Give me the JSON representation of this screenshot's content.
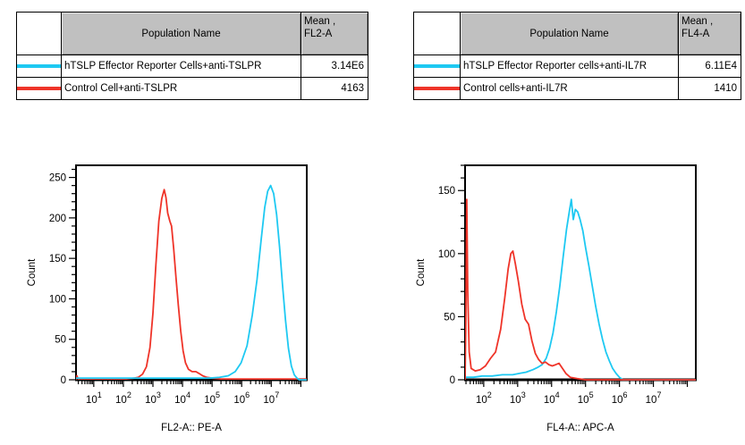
{
  "colors": {
    "cyan": "#1ec9f2",
    "red": "#ef3429",
    "table_header_bg": "#c0c0c0",
    "axis": "#000000"
  },
  "tables": [
    {
      "population_header": "Population Name",
      "mean_header_line1": "Mean ,",
      "mean_header_line2": "FL2-A",
      "rows": [
        {
          "name": "hTSLP Effector Reporter Cells+anti-TSLPR",
          "mean": "3.14E6",
          "color": "#1ec9f2"
        },
        {
          "name": "Control Cell+anti-TSLPR",
          "mean": "4163",
          "color": "#ef3429"
        }
      ]
    },
    {
      "population_header": "Population Name",
      "mean_header_line1": "Mean ,",
      "mean_header_line2": "FL4-A",
      "rows": [
        {
          "name": "hTSLP Effector Reporter cells+anti-IL7R",
          "mean": "6.11E4",
          "color": "#1ec9f2"
        },
        {
          "name": "Control cells+anti-IL7R",
          "mean": "1410",
          "color": "#ef3429"
        }
      ]
    }
  ],
  "chart_data": [
    {
      "type": "line",
      "title": "",
      "xlabel": "FL2-A:: PE-A",
      "ylabel": "Count",
      "x_scale": "log",
      "x_log_range": [
        0.4,
        8.2
      ],
      "x_labeled_decades": [
        1,
        2,
        3,
        4,
        5,
        6,
        7
      ],
      "ylim": [
        0,
        265
      ],
      "y_major_step": 50,
      "y_minor_step": 10,
      "grid": false,
      "legend_position": "none",
      "series": [
        {
          "name": "Control Cell+anti-TSLPR",
          "color": "#ef3429",
          "mean": "4163",
          "points": [
            [
              0.4,
              0
            ],
            [
              0.43,
              5
            ],
            [
              0.47,
              1
            ],
            [
              1.0,
              1
            ],
            [
              1.6,
              1
            ],
            [
              2.1,
              1
            ],
            [
              2.35,
              2
            ],
            [
              2.5,
              3
            ],
            [
              2.65,
              7
            ],
            [
              2.78,
              16
            ],
            [
              2.9,
              40
            ],
            [
              3.0,
              82
            ],
            [
              3.1,
              142
            ],
            [
              3.2,
              196
            ],
            [
              3.3,
              224
            ],
            [
              3.38,
              235
            ],
            [
              3.44,
              225
            ],
            [
              3.5,
              206
            ],
            [
              3.57,
              196
            ],
            [
              3.63,
              190
            ],
            [
              3.7,
              162
            ],
            [
              3.78,
              126
            ],
            [
              3.86,
              92
            ],
            [
              3.94,
              60
            ],
            [
              4.02,
              36
            ],
            [
              4.1,
              21
            ],
            [
              4.2,
              13
            ],
            [
              4.32,
              10
            ],
            [
              4.45,
              10
            ],
            [
              4.55,
              8
            ],
            [
              4.68,
              5
            ],
            [
              4.82,
              3
            ],
            [
              5.0,
              2
            ],
            [
              5.3,
              1
            ],
            [
              6.0,
              1
            ],
            [
              6.8,
              1
            ],
            [
              7.6,
              1
            ],
            [
              8.2,
              1
            ]
          ]
        },
        {
          "name": "hTSLP Effector Reporter Cells+anti-TSLPR",
          "color": "#1ec9f2",
          "mean": "3.14E6",
          "points": [
            [
              0.4,
              2
            ],
            [
              1.2,
              2
            ],
            [
              2.2,
              2
            ],
            [
              3.2,
              2
            ],
            [
              4.2,
              2
            ],
            [
              4.9,
              2
            ],
            [
              5.25,
              3
            ],
            [
              5.55,
              5
            ],
            [
              5.78,
              10
            ],
            [
              5.98,
              21
            ],
            [
              6.18,
              42
            ],
            [
              6.36,
              80
            ],
            [
              6.52,
              124
            ],
            [
              6.66,
              174
            ],
            [
              6.78,
              213
            ],
            [
              6.88,
              233
            ],
            [
              6.98,
              240
            ],
            [
              7.08,
              230
            ],
            [
              7.18,
              204
            ],
            [
              7.28,
              164
            ],
            [
              7.38,
              117
            ],
            [
              7.48,
              74
            ],
            [
              7.58,
              39
            ],
            [
              7.68,
              17
            ],
            [
              7.78,
              6
            ],
            [
              7.87,
              2
            ],
            [
              7.95,
              0
            ],
            [
              8.2,
              0
            ]
          ]
        }
      ]
    },
    {
      "type": "line",
      "title": "",
      "xlabel": "FL4-A:: APC-A",
      "ylabel": "Count",
      "x_scale": "log",
      "x_log_range": [
        1.45,
        8.25
      ],
      "x_labeled_decades": [
        2,
        3,
        4,
        5,
        6,
        7
      ],
      "ylim": [
        0,
        170
      ],
      "y_major_step": 50,
      "y_minor_step": 10,
      "grid": false,
      "legend_position": "none",
      "series": [
        {
          "name": "hTSLP Effector Reporter cells+anti-IL7R",
          "color": "#1ec9f2",
          "mean": "6.11E4",
          "points": [
            [
              1.45,
              2
            ],
            [
              1.7,
              2
            ],
            [
              1.95,
              3
            ],
            [
              2.25,
              3
            ],
            [
              2.55,
              4
            ],
            [
              2.85,
              4
            ],
            [
              3.05,
              5
            ],
            [
              3.25,
              6
            ],
            [
              3.45,
              8
            ],
            [
              3.6,
              10
            ],
            [
              3.72,
              12
            ],
            [
              3.84,
              17
            ],
            [
              3.94,
              25
            ],
            [
              4.04,
              37
            ],
            [
              4.14,
              54
            ],
            [
              4.24,
              74
            ],
            [
              4.34,
              97
            ],
            [
              4.44,
              119
            ],
            [
              4.52,
              133
            ],
            [
              4.58,
              143
            ],
            [
              4.64,
              127
            ],
            [
              4.7,
              135
            ],
            [
              4.77,
              133
            ],
            [
              4.84,
              127
            ],
            [
              4.92,
              118
            ],
            [
              5.0,
              105
            ],
            [
              5.1,
              90
            ],
            [
              5.2,
              74
            ],
            [
              5.3,
              58
            ],
            [
              5.4,
              44
            ],
            [
              5.5,
              32
            ],
            [
              5.6,
              22
            ],
            [
              5.7,
              15
            ],
            [
              5.8,
              9
            ],
            [
              5.9,
              5
            ],
            [
              6.0,
              2
            ],
            [
              6.1,
              0
            ],
            [
              6.6,
              0
            ],
            [
              8.25,
              0
            ]
          ]
        },
        {
          "name": "Control cells+anti-IL7R",
          "color": "#ef3429",
          "mean": "1410",
          "points": [
            [
              1.45,
              0
            ],
            [
              1.47,
              40
            ],
            [
              1.5,
              143
            ],
            [
              1.53,
              70
            ],
            [
              1.57,
              22
            ],
            [
              1.63,
              9
            ],
            [
              1.75,
              7
            ],
            [
              1.9,
              8
            ],
            [
              2.05,
              11
            ],
            [
              2.2,
              17
            ],
            [
              2.35,
              22
            ],
            [
              2.5,
              40
            ],
            [
              2.62,
              65
            ],
            [
              2.72,
              88
            ],
            [
              2.8,
              100
            ],
            [
              2.86,
              102
            ],
            [
              2.93,
              92
            ],
            [
              3.02,
              78
            ],
            [
              3.12,
              60
            ],
            [
              3.22,
              48
            ],
            [
              3.32,
              44
            ],
            [
              3.42,
              31
            ],
            [
              3.52,
              21
            ],
            [
              3.62,
              16
            ],
            [
              3.72,
              13
            ],
            [
              3.82,
              14
            ],
            [
              3.92,
              12
            ],
            [
              4.02,
              11
            ],
            [
              4.12,
              12
            ],
            [
              4.22,
              13
            ],
            [
              4.32,
              9
            ],
            [
              4.42,
              5
            ],
            [
              4.55,
              2
            ],
            [
              4.75,
              1
            ],
            [
              5.0,
              0
            ],
            [
              5.6,
              0
            ],
            [
              6.5,
              0
            ],
            [
              7.4,
              0
            ],
            [
              8.25,
              0
            ]
          ]
        }
      ]
    }
  ]
}
